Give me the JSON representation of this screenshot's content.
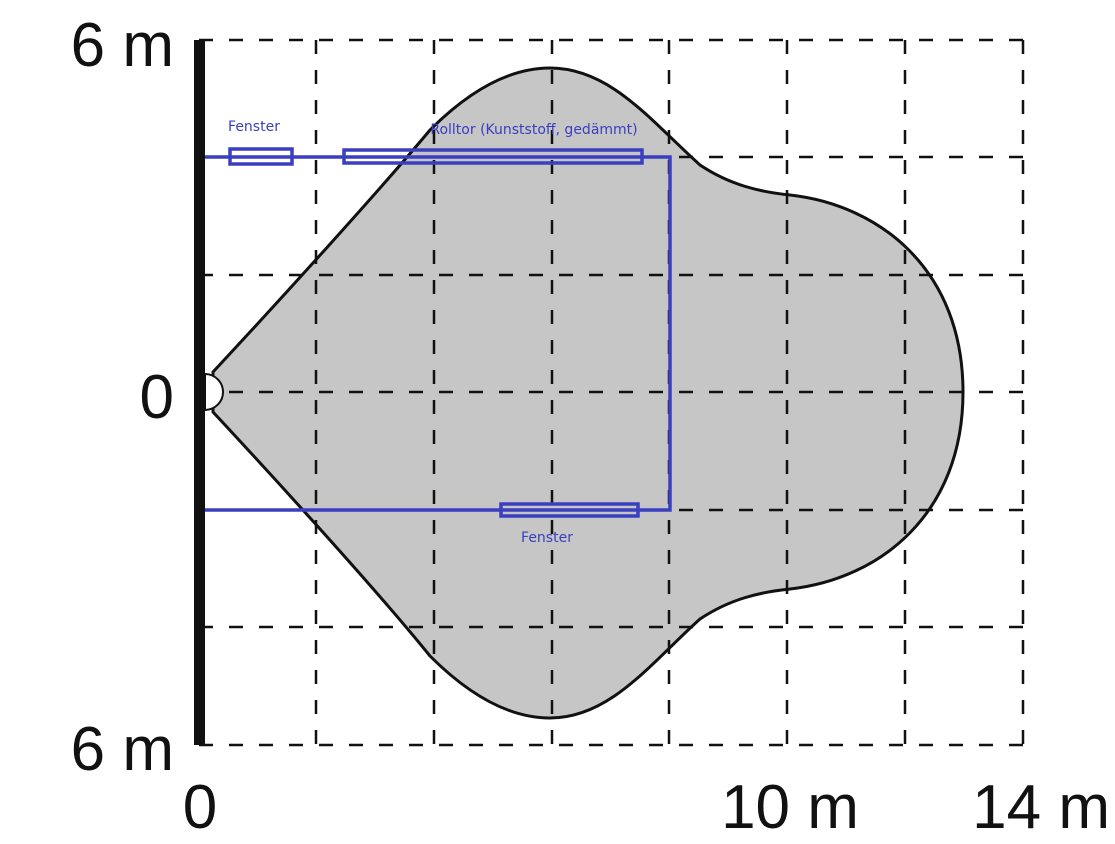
{
  "axes": {
    "y_labels": [
      "6 m",
      "0",
      "6 m"
    ],
    "x_labels": [
      "0",
      "10 m",
      "14 m"
    ]
  },
  "annotations": [
    "Fenster",
    "Rolltor (Kunststoff, gedämmt)",
    "Fenster"
  ]
}
